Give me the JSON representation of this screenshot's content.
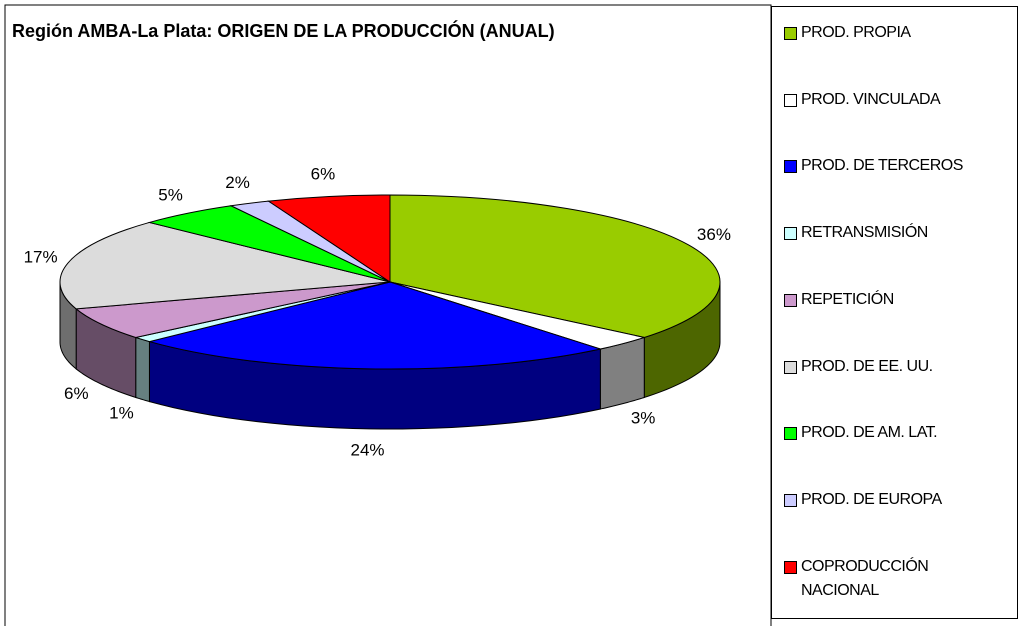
{
  "chart_data": {
    "type": "pie",
    "title": "Región AMBA-La Plata: ORIGEN DE LA PRODUCCIÓN (ANUAL)",
    "categories": [
      "PROD. PROPIA",
      "PROD. VINCULADA",
      "PROD. DE TERCEROS",
      "RETRANSMISIÓN",
      "REPETICIÓN",
      "PROD. DE EE. UU.",
      "PROD. DE AM. LAT.",
      "PROD. DE EUROPA",
      "COPRODUCCIÓN NACIONAL"
    ],
    "values": [
      36,
      3,
      24,
      1,
      6,
      17,
      5,
      2,
      6
    ],
    "value_labels": [
      "36%",
      "3%",
      "24%",
      "1%",
      "6%",
      "17%",
      "5%",
      "2%",
      "6%"
    ],
    "colors": [
      "#99cc00",
      "#ffffff",
      "#0000ff",
      "#ccffff",
      "#cc99cc",
      "#dcdcdc",
      "#00ff00",
      "#ccccff",
      "#ff0000"
    ],
    "legend": "right"
  }
}
